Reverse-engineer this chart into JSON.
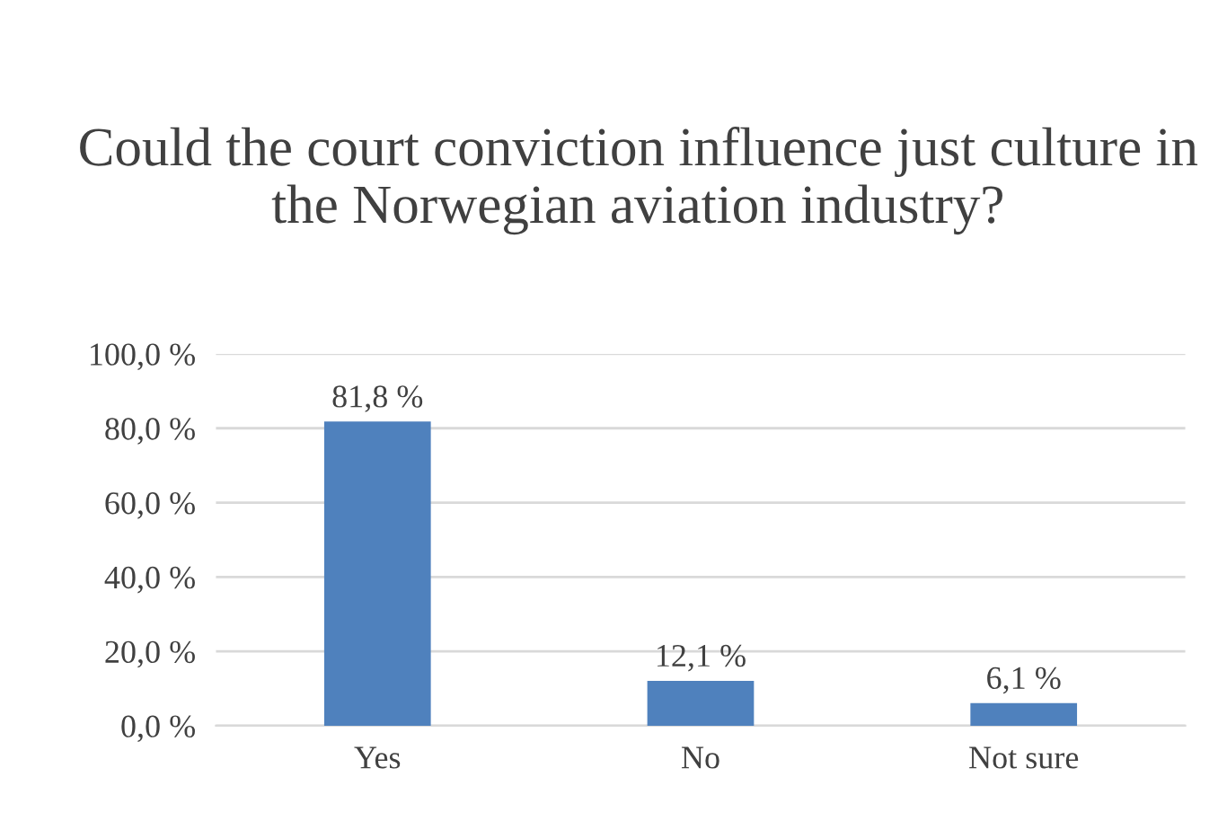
{
  "chart_data": {
    "type": "bar",
    "title": "Could the court conviction influence just culture in the Norwegian aviation industry?",
    "categories": [
      "Yes",
      "No",
      "Not sure"
    ],
    "values": [
      81.8,
      12.1,
      6.1
    ],
    "value_labels": [
      "81,8 %",
      "12,1 %",
      "6,1 %"
    ],
    "color": "#4f81bd",
    "ylim": [
      0,
      100
    ],
    "yticks": [
      {
        "value": 0,
        "label": "0,0 %"
      },
      {
        "value": 20,
        "label": "20,0 %"
      },
      {
        "value": 40,
        "label": "40,0 %"
      },
      {
        "value": 60,
        "label": "60,0 %"
      },
      {
        "value": 80,
        "label": "80,0 %"
      },
      {
        "value": 100,
        "label": "100,0 %"
      }
    ],
    "grid": "y"
  }
}
